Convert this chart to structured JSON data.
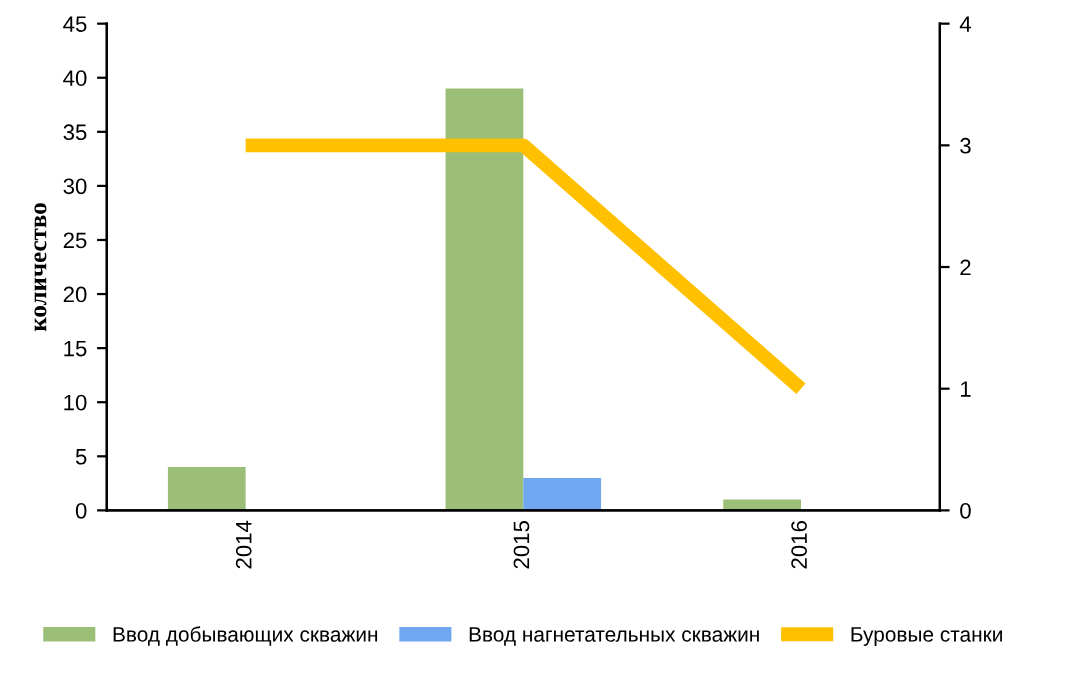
{
  "chart_data": {
    "type": "bar",
    "ylabel": "количество",
    "categories": [
      "2014",
      "2015",
      "2016"
    ],
    "series": [
      {
        "name": "Ввод добывающих скважин",
        "color": "#9cbf78",
        "values": [
          4,
          39,
          1
        ]
      },
      {
        "name": "Ввод нагнетательных скважин",
        "color": "#6fa8f0",
        "values": [
          null,
          3,
          null
        ]
      },
      {
        "name": "Буровые станки",
        "type": "line",
        "axis": "y2",
        "color": "#ffc000",
        "values": [
          3,
          3,
          1
        ]
      }
    ],
    "ylim": [
      0,
      45
    ],
    "yticks": [
      0,
      5,
      10,
      15,
      20,
      25,
      30,
      35,
      40,
      45
    ],
    "y2lim": [
      0,
      4
    ],
    "y2ticks": [
      0,
      1,
      2,
      3,
      4
    ],
    "grid": false,
    "legend": "bottom"
  }
}
